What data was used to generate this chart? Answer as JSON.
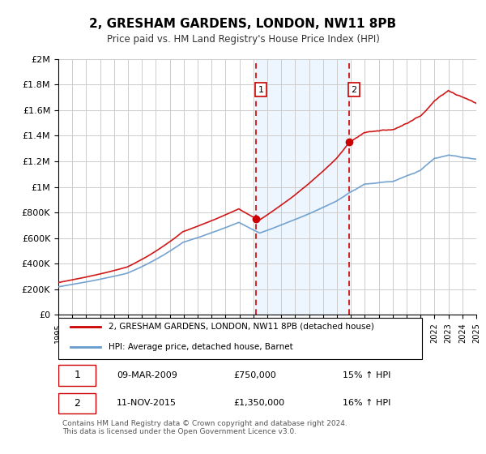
{
  "title": "2, GRESHAM GARDENS, LONDON, NW11 8PB",
  "subtitle": "Price paid vs. HM Land Registry's House Price Index (HPI)",
  "legend_house": "2, GRESHAM GARDENS, LONDON, NW11 8PB (detached house)",
  "legend_hpi": "HPI: Average price, detached house, Barnet",
  "house_color": "#cc0000",
  "hpi_color": "#6699cc",
  "sale1_date": "09-MAR-2009",
  "sale1_price": "£750,000",
  "sale1_hpi": "15% ↑ HPI",
  "sale1_year": 2009.19,
  "sale1_value": 750000,
  "sale2_date": "11-NOV-2015",
  "sale2_price": "£1,350,000",
  "sale2_hpi": "16% ↑ HPI",
  "sale2_year": 2015.86,
  "sale2_value": 1350000,
  "ylim_max": 2000000,
  "ylim_min": 0,
  "xlim_min": 1995,
  "xlim_max": 2025,
  "ylabel_ticks": [
    0,
    200000,
    400000,
    600000,
    800000,
    1000000,
    1200000,
    1400000,
    1600000,
    1800000,
    2000000
  ],
  "ylabel_labels": [
    "£0",
    "£200K",
    "£400K",
    "£600K",
    "£800K",
    "£1M",
    "£1.2M",
    "£1.4M",
    "£1.6M",
    "£1.8M",
    "£2M"
  ],
  "copyright_text": "Contains HM Land Registry data © Crown copyright and database right 2024.\nThis data is licensed under the Open Government Licence v3.0.",
  "background_color": "#ffffff",
  "grid_color": "#cccccc",
  "shade_color": "#ddeeff"
}
